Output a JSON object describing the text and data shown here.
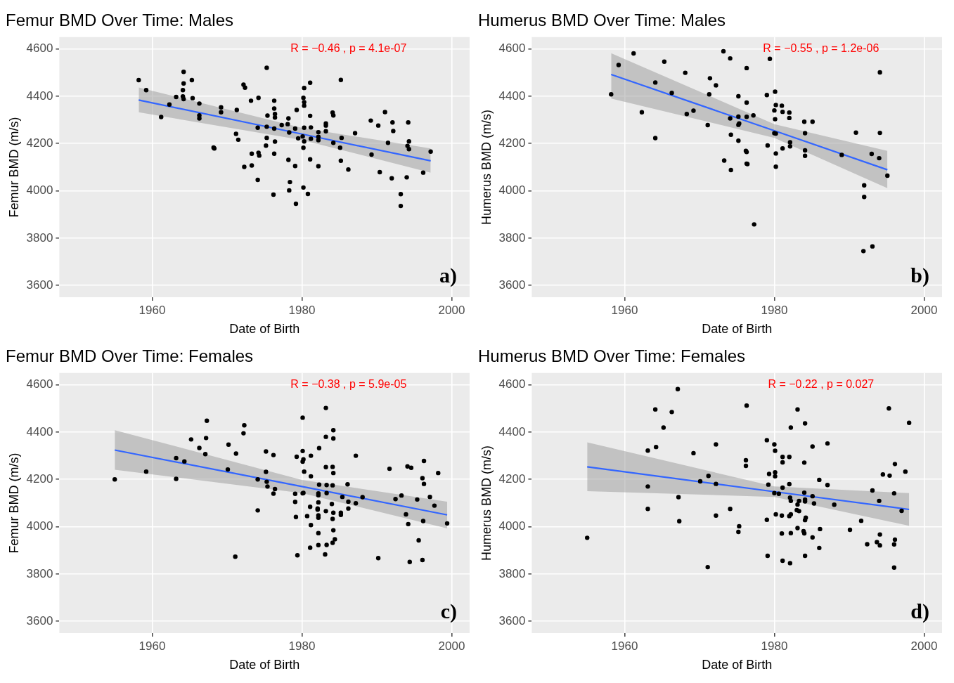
{
  "chart_data": [
    {
      "type": "scatter",
      "title": "Femur BMD Over Time: Males",
      "xlabel": "Date of Birth",
      "ylabel": "Femur BMD (m/s)",
      "xlim": [
        1947.6,
        2002.4
      ],
      "xticks": [
        1960,
        1980,
        2000
      ],
      "ylim": [
        3550,
        4650
      ],
      "yticks": [
        3600,
        3800,
        4000,
        4200,
        4400,
        4600
      ],
      "grid": true,
      "annotations": [
        "R = −0.46 , p = 4.1e-07",
        "a)"
      ],
      "series": [
        {
          "type": "line",
          "marker": "none",
          "color": "#3366ff",
          "x": [
            1958.2,
            1980,
            1997.2
          ],
          "values": [
            4384,
            4240,
            4127
          ],
          "lower": [
            4332,
            4215,
            4077
          ],
          "upper": [
            4437,
            4266,
            4179
          ]
        },
        {
          "marker": "circle",
          "color": "#000000",
          "x": [
            1958.2,
            1959.2,
            1961.2,
            1962.3,
            1963.2,
            1964.2,
            1964.2,
            1964.1,
            1964.1,
            1964.2,
            1965.3,
            1965.4,
            1966.3,
            1966.3,
            1966.3,
            1968.2,
            1968.3,
            1969.2,
            1969.2,
            1971.2,
            1971.3,
            1971.5,
            1972.2,
            1972.4,
            1973.2,
            1973.3,
            1973.3,
            1972.3,
            1974.2,
            1974.1,
            1974.2,
            1974.3,
            1974.1,
            1975.3,
            1975.4,
            1975.3,
            1975.3,
            1975.2,
            1976.3,
            1976.3,
            1976.4,
            1976.4,
            1976.3,
            1976.4,
            1976.3,
            1976.2,
            1977.3,
            1978.2,
            1978.1,
            1978.3,
            1978.2,
            1978.4,
            1978.3,
            1979.1,
            1979.3,
            1979.5,
            1979.1,
            1979.2,
            1980.3,
            1980.2,
            1980.3,
            1980.3,
            1980.3,
            1980.1,
            1980.3,
            1980.2,
            1980.2,
            1980.8,
            1981.1,
            1981.1,
            1981.2,
            1981.2,
            1981.1,
            1982.2,
            1982.2,
            1982.2,
            1982.2,
            1983.2,
            1983.2,
            1983.2,
            1984.1,
            1984.2,
            1984.2,
            1985.2,
            1985.3,
            1985.1,
            1985.2,
            1986.2,
            1987.1,
            1989.2,
            1989.3,
            1990.2,
            1990.4,
            1991.1,
            1991.5,
            1992.1,
            1992.2,
            1992.0,
            1993.2,
            1993.2,
            1994.2,
            1994.3,
            1994.1,
            1994.3,
            1994.0,
            1996.2,
            1997.2
          ],
          "values": [
            4468,
            4426,
            4312,
            4365,
            4397,
            4503,
            4454,
            4426,
            4399,
            4388,
            4468,
            4392,
            4369,
            4319,
            4306,
            4183,
            4179,
            4353,
            4332,
            4241,
            4342,
            4216,
            4449,
            4436,
            4381,
            4157,
            4107,
            4101,
            4393,
            4267,
            4161,
            4149,
            4046,
            4520,
            4318,
            4271,
            4224,
            4191,
            4381,
            4348,
            4325,
            4310,
            4263,
            4208,
            4157,
            3984,
            4278,
            4306,
            4282,
            4247,
            4131,
            4037,
            4002,
            4263,
            4342,
            4222,
            4105,
            3945,
            4435,
            4393,
            4375,
            4360,
            4267,
            4230,
            4209,
            4182,
            4014,
            3987,
            4457,
            4317,
            4268,
            4220,
            4133,
            4248,
            4228,
            4214,
            4104,
            4285,
            4276,
            4252,
            4331,
            4319,
            4203,
            4469,
            4224,
            4182,
            4127,
            4090,
            4244,
            4297,
            4153,
            4276,
            4079,
            4333,
            4203,
            4289,
            4253,
            4053,
            3986,
            3936,
            4289,
            4209,
            4190,
            4176,
            4057,
            4077,
            4166
          ]
        }
      ]
    },
    {
      "type": "scatter",
      "title": "Humerus BMD Over Time: Males",
      "xlabel": "Date of Birth",
      "ylabel": "Humerus BMD (m/s)",
      "xlim": [
        1947.6,
        2002.4
      ],
      "xticks": [
        1960,
        1980,
        2000
      ],
      "ylim": [
        3550,
        4650
      ],
      "yticks": [
        3600,
        3800,
        4000,
        4200,
        4400,
        4600
      ],
      "grid": true,
      "annotations": [
        "R = −0.55 , p = 1.2e-06",
        "b)"
      ],
      "series": [
        {
          "type": "line",
          "marker": "none",
          "color": "#3366ff",
          "x": [
            1958.2,
            1980,
            1995.1
          ],
          "values": [
            4492,
            4254,
            4089
          ],
          "lower": [
            4390,
            4224,
            4011
          ],
          "upper": [
            4582,
            4282,
            4169
          ]
        },
        {
          "marker": "circle",
          "color": "#000000",
          "x": [
            1958.2,
            1959.2,
            1961.2,
            1962.3,
            1964.1,
            1964.1,
            1965.3,
            1966.3,
            1968.1,
            1968.3,
            1969.2,
            1971.1,
            1971.3,
            1971.4,
            1972.2,
            1973.2,
            1973.3,
            1974.1,
            1974.1,
            1974.2,
            1974.2,
            1975.2,
            1975.2,
            1975.3,
            1975.2,
            1975.2,
            1976.3,
            1976.3,
            1976.3,
            1976.2,
            1976.3,
            1976.3,
            1976.4,
            1977.2,
            1977.3,
            1979.4,
            1979.0,
            1979.1,
            1980.1,
            1980.2,
            1980.0,
            1980.1,
            1980.0,
            1980.2,
            1980.2,
            1980.2,
            1981.0,
            1981.1,
            1981.1,
            1982.0,
            1982.0,
            1982.1,
            1982.1,
            1984.0,
            1984.1,
            1984.1,
            1984.1,
            1985.1,
            1989.0,
            1990.9,
            1992.0,
            1992.0,
            1991.9,
            1993.0,
            1993.1,
            1994.1,
            1994.1,
            1994.0,
            1995.1
          ],
          "values": [
            4408,
            4532,
            4581,
            4332,
            4458,
            4223,
            4546,
            4414,
            4499,
            4325,
            4339,
            4278,
            4408,
            4476,
            4446,
            4590,
            4128,
            4560,
            4306,
            4237,
            4088,
            4400,
            4314,
            4285,
            4279,
            4212,
            4519,
            4373,
            4313,
            4169,
            4164,
            4115,
            4113,
            4319,
            3858,
            4558,
            4405,
            4192,
            4419,
            4363,
            4340,
            4303,
            4244,
            4242,
            4158,
            4102,
            4360,
            4334,
            4179,
            4331,
            4308,
            4205,
            4188,
            4292,
            4244,
            4171,
            4148,
            4292,
            4152,
            4246,
            4023,
            3974,
            3745,
            4156,
            3765,
            4501,
            4245,
            4138,
            4064
          ]
        }
      ]
    },
    {
      "type": "scatter",
      "title": "Femur BMD Over Time: Females",
      "xlabel": "Date of Birth",
      "ylabel": "Femur BMD (m/s)",
      "xlim": [
        1947.6,
        2002.4
      ],
      "xticks": [
        1960,
        1980,
        2000
      ],
      "ylim": [
        3550,
        4650
      ],
      "yticks": [
        3600,
        3800,
        4000,
        4200,
        4400,
        4600
      ],
      "grid": true,
      "annotations": [
        "R = −0.38 , p = 5.9e-05",
        "c)"
      ],
      "series": [
        {
          "type": "line",
          "marker": "none",
          "color": "#3366ff",
          "x": [
            1955.0,
            1980,
            1999.4
          ],
          "values": [
            4324,
            4170,
            4050
          ],
          "lower": [
            4241,
            4142,
            3993
          ],
          "upper": [
            4408,
            4198,
            4106
          ]
        },
        {
          "marker": "circle",
          "color": "#000000",
          "x": [
            1955.0,
            1959.2,
            1963.2,
            1963.2,
            1964.3,
            1965.2,
            1966.3,
            1967.1,
            1967.2,
            1967.3,
            1970.1,
            1970.2,
            1971.1,
            1971.2,
            1972.3,
            1972.2,
            1974.1,
            1974.1,
            1975.2,
            1975.2,
            1975.3,
            1975.4,
            1976.2,
            1976.4,
            1976.2,
            1979.1,
            1979.1,
            1979.2,
            1979.3,
            1979.4,
            1980.1,
            1980.1,
            1980.2,
            1980.1,
            1980.3,
            1980.1,
            1980.2,
            1981.2,
            1981.2,
            1981.1,
            1980.7,
            1981.2,
            1981.1,
            1982.3,
            1982.3,
            1982.2,
            1982.2,
            1982.2,
            1982.1,
            1982.1,
            1982.2,
            1982.2,
            1982.2,
            1982.2,
            1983.2,
            1983.2,
            1983.2,
            1983.3,
            1983.3,
            1983.2,
            1983.3,
            1983.1,
            1984.2,
            1984.2,
            1984.1,
            1984.2,
            1984.1,
            1984.0,
            1984.2,
            1984.1,
            1984.2,
            1984.4,
            1984.1,
            1985.2,
            1985.2,
            1985.4,
            1986.1,
            1986.2,
            1986.2,
            1987.2,
            1987.2,
            1988.1,
            1990.2,
            1991.7,
            1992.5,
            1993.3,
            1993.9,
            1994.1,
            1994.6,
            1994.2,
            1994.4,
            1995.4,
            1995.6,
            1996.3,
            1996.1,
            1996.3,
            1996.2,
            1996.1,
            1997.1,
            1997.7,
            1998.2,
            1999.4
          ],
          "values": [
            4200,
            4233,
            4290,
            4202,
            4276,
            4369,
            4333,
            4307,
            4375,
            4448,
            4242,
            4347,
            3873,
            4309,
            4429,
            4395,
            4200,
            4069,
            4318,
            4232,
            4190,
            4170,
            4303,
            4159,
            4140,
            4139,
            4105,
            4041,
            4296,
            3879,
            4461,
            4320,
            4285,
            4275,
            4233,
            4141,
            4143,
            4300,
            4213,
            4084,
            4045,
            4007,
            3911,
            4332,
            4178,
            4141,
            4133,
            4103,
            4077,
            4072,
            4048,
            4038,
            3973,
            3922,
            4502,
            4380,
            4252,
            4176,
            4142,
            4066,
            3923,
            3883,
            4408,
            4373,
            4253,
            4227,
            4175,
            4096,
            4059,
            4033,
            3985,
            3947,
            3932,
            4059,
            4050,
            4126,
            4179,
            4106,
            4077,
            4300,
            4099,
            4125,
            3867,
            4245,
            4117,
            4132,
            4052,
            4255,
            4249,
            4011,
            3851,
            4115,
            3942,
            4278,
            4205,
            4181,
            4024,
            3859,
            4126,
            4089,
            4227,
            4014
          ]
        }
      ]
    },
    {
      "type": "scatter",
      "title": "Humerus BMD Over Time: Females",
      "xlabel": "Date of Birth",
      "ylabel": "Humerus BMD (m/s)",
      "xlim": [
        1947.6,
        2002.4
      ],
      "xticks": [
        1960,
        1980,
        2000
      ],
      "ylim": [
        3550,
        4650
      ],
      "yticks": [
        3600,
        3800,
        4000,
        4200,
        4400,
        4600
      ],
      "grid": true,
      "annotations": [
        "R = −0.22 , p = 0.027",
        "d)"
      ],
      "series": [
        {
          "type": "line",
          "marker": "none",
          "color": "#3366ff",
          "x": [
            1955.0,
            1980,
            1998.0
          ],
          "values": [
            4253,
            4148,
            4073
          ],
          "lower": [
            4150,
            4126,
            4004
          ],
          "upper": [
            4357,
            4170,
            4142
          ]
        },
        {
          "marker": "circle",
          "color": "#000000",
          "x": [
            1955.0,
            1963.1,
            1963.1,
            1963.1,
            1964.1,
            1964.2,
            1965.2,
            1966.3,
            1967.1,
            1967.2,
            1967.3,
            1969.2,
            1970.1,
            1971.1,
            1971.2,
            1972.2,
            1972.2,
            1972.2,
            1974.1,
            1975.2,
            1975.3,
            1976.2,
            1976.2,
            1976.3,
            1979.0,
            1979.1,
            1979.0,
            1979.2,
            1979.3,
            1980.0,
            1980.0,
            1980.1,
            1980.1,
            1980.1,
            1980.2,
            1980.6,
            1981.0,
            1981.0,
            1981.1,
            1981.1,
            1981.1,
            1981.1,
            1982.0,
            1982.0,
            1982.1,
            1982.2,
            1982.0,
            1982.2,
            1982.2,
            1982.1,
            1982.2,
            1983.1,
            1983.1,
            1983.3,
            1983.0,
            1983.3,
            1983.1,
            1983.9,
            1984.0,
            1984.0,
            1984.1,
            1984.0,
            1984.1,
            1984.1,
            1984.1,
            1984.2,
            1984.1,
            1985.1,
            1985.1,
            1985.3,
            1985.1,
            1986.0,
            1986.1,
            1986.0,
            1987.1,
            1987.1,
            1988.0,
            1990.1,
            1991.6,
            1992.4,
            1993.1,
            1993.7,
            1994.0,
            1994.1,
            1994.1,
            1994.5,
            1995.3,
            1995.4,
            1996.0,
            1996.1,
            1996.1,
            1996.0,
            1996.0,
            1997.0,
            1997.5,
            1998.0
          ],
          "values": [
            3953,
            4170,
            4075,
            4322,
            4496,
            4337,
            4419,
            4485,
            4582,
            4125,
            4023,
            4311,
            4192,
            3829,
            4215,
            4348,
            4181,
            4047,
            4075,
            3978,
            4002,
            4281,
            4257,
            4512,
            4366,
            3877,
            4029,
            4178,
            4223,
            4142,
            4348,
            4321,
            4230,
            4213,
            4052,
            4139,
            3971,
            4047,
            4165,
            4272,
            4295,
            3856,
            4295,
            4180,
            4123,
            4109,
            4045,
            4052,
            3973,
            3846,
            4419,
            4496,
            4094,
            4109,
            4070,
            4066,
            3994,
            3981,
            3972,
            4271,
            4437,
            4144,
            4115,
            4107,
            4028,
            4038,
            3877,
            4339,
            4129,
            4098,
            3955,
            4198,
            3990,
            3910,
            4352,
            4176,
            4093,
            3987,
            4025,
            3926,
            4153,
            3935,
            4109,
            3967,
            3921,
            4221,
            4500,
            4216,
            4141,
            4265,
            3945,
            3925,
            3827,
            4067,
            4233,
            4439
          ]
        }
      ]
    }
  ]
}
